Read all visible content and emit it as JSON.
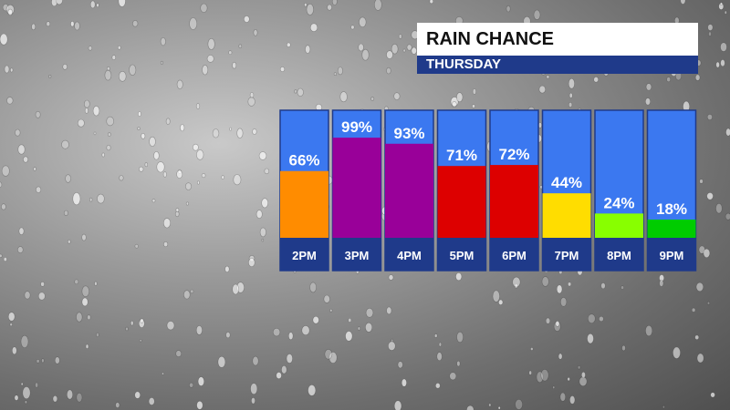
{
  "header": {
    "title": "RAIN CHANCE",
    "subtitle": "THURSDAY"
  },
  "chart_data": {
    "type": "bar",
    "title": "RAIN CHANCE",
    "subtitle": "THURSDAY",
    "categories": [
      "2PM",
      "3PM",
      "4PM",
      "5PM",
      "6PM",
      "7PM",
      "8PM",
      "9PM"
    ],
    "values": [
      66,
      99,
      93,
      71,
      72,
      44,
      24,
      18
    ],
    "value_labels": [
      "66%",
      "99%",
      "93%",
      "71%",
      "72%",
      "44%",
      "24%",
      "18%"
    ],
    "bar_colors": [
      "#ff8c00",
      "#990099",
      "#990099",
      "#dd0000",
      "#dd0000",
      "#ffdd00",
      "#88ff00",
      "#00cc00"
    ],
    "ylim": [
      0,
      100
    ],
    "grid": false,
    "background_color": "#3b78f0",
    "label_band_color": "#1f3a8a"
  }
}
